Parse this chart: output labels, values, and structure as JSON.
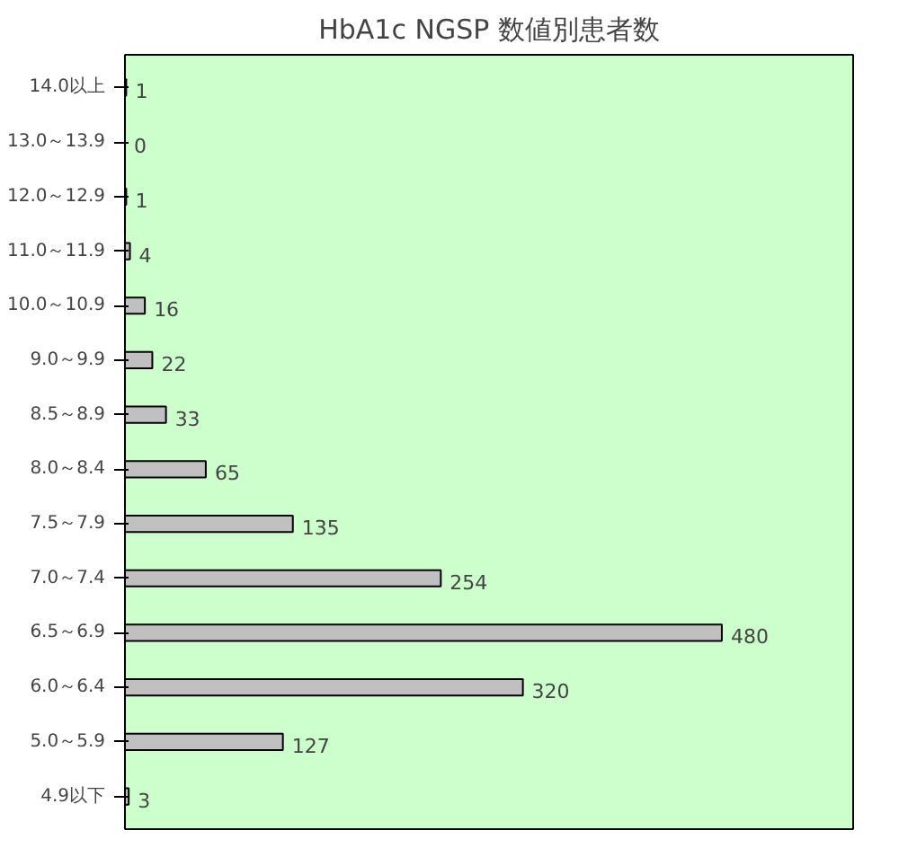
{
  "chart_data": {
    "type": "bar",
    "orientation": "horizontal",
    "title": "HbA1c NGSP 数値別患者数",
    "categories": [
      "14.0以上",
      "13.0～13.9",
      "12.0～12.9",
      "11.0～11.9",
      "10.0～10.9",
      "9.0～9.9",
      "8.5～8.9",
      "8.0～8.4",
      "7.5～7.9",
      "7.0～7.4",
      "6.5～6.9",
      "6.0～6.4",
      "5.0～5.9",
      "4.9以下"
    ],
    "values": [
      1,
      0,
      1,
      4,
      16,
      22,
      33,
      65,
      135,
      254,
      480,
      320,
      127,
      3
    ],
    "color": "#c0c0c0",
    "data_labels": true,
    "grid": false,
    "tick_labels": "y"
  }
}
